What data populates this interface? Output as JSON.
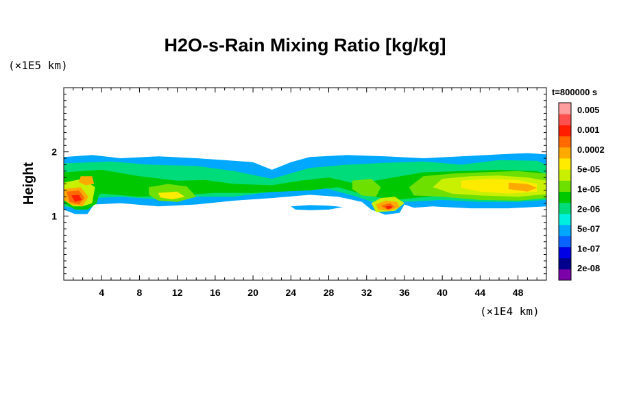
{
  "chart_data": {
    "type": "heatmap",
    "title": "H2O-s-Rain Mixing Ratio [kg/kg]",
    "ylabel": "Height",
    "xlabel": "",
    "x_scale_label": "(×1E4 km)",
    "y_scale_label": "(×1E5 km)",
    "time_label": "t=800000 s",
    "xlim": [
      0,
      51
    ],
    "ylim": [
      0,
      3
    ],
    "x_ticks": [
      4,
      8,
      12,
      16,
      20,
      24,
      28,
      32,
      36,
      40,
      44,
      48
    ],
    "y_ticks": [
      1,
      2
    ],
    "colorbar": {
      "labels": [
        "0.005",
        "0.001",
        "0.0002",
        "5e-05",
        "1e-05",
        "2e-06",
        "5e-07",
        "1e-07",
        "2e-08"
      ],
      "colors": [
        "#7a00a8",
        "#00008c",
        "#0000e6",
        "#0b63ff",
        "#00a8ff",
        "#00f0e0",
        "#00dc7a",
        "#00c800",
        "#6ee000",
        "#c8f000",
        "#ffeb00",
        "#ffaa00",
        "#ff6a00",
        "#ff1e00",
        "#ff5050",
        "#ff9e9e"
      ]
    },
    "regions": [
      {
        "level": 4,
        "points": [
          [
            0,
            1.92
          ],
          [
            3,
            1.95
          ],
          [
            6,
            1.9
          ],
          [
            10,
            1.93
          ],
          [
            14,
            1.9
          ],
          [
            17,
            1.87
          ],
          [
            20,
            1.84
          ],
          [
            22,
            1.72
          ],
          [
            24,
            1.84
          ],
          [
            26,
            1.92
          ],
          [
            30,
            1.95
          ],
          [
            34,
            1.93
          ],
          [
            38,
            1.9
          ],
          [
            42,
            1.93
          ],
          [
            46,
            1.96
          ],
          [
            49,
            1.98
          ],
          [
            51,
            1.96
          ],
          [
            51,
            1.15
          ],
          [
            47,
            1.12
          ],
          [
            43,
            1.12
          ],
          [
            39,
            1.15
          ],
          [
            37,
            1.13
          ],
          [
            36,
            1.18
          ],
          [
            35.5,
            1.05
          ],
          [
            34,
            1.02
          ],
          [
            32.5,
            1.1
          ],
          [
            31.5,
            1.22
          ],
          [
            29,
            1.3
          ],
          [
            26,
            1.33
          ],
          [
            22,
            1.28
          ],
          [
            18,
            1.24
          ],
          [
            14,
            1.18
          ],
          [
            10,
            1.15
          ],
          [
            6,
            1.2
          ],
          [
            3.2,
            1.18
          ],
          [
            2.5,
            1.03
          ],
          [
            1.2,
            1.03
          ],
          [
            0,
            1.1
          ]
        ]
      },
      {
        "level": 4,
        "points": [
          [
            24,
            1.15
          ],
          [
            26,
            1.17
          ],
          [
            28,
            1.16
          ],
          [
            29.5,
            1.14
          ],
          [
            28,
            1.1
          ],
          [
            26,
            1.09
          ],
          [
            24.5,
            1.1
          ]
        ]
      },
      {
        "level": 6,
        "points": [
          [
            0,
            1.82
          ],
          [
            5,
            1.85
          ],
          [
            9,
            1.8
          ],
          [
            14,
            1.78
          ],
          [
            18,
            1.7
          ],
          [
            22,
            1.58
          ],
          [
            26,
            1.75
          ],
          [
            30,
            1.8
          ],
          [
            34,
            1.83
          ],
          [
            38,
            1.85
          ],
          [
            42,
            1.8
          ],
          [
            46,
            1.87
          ],
          [
            50,
            1.86
          ],
          [
            51,
            1.8
          ],
          [
            51,
            1.25
          ],
          [
            48,
            1.22
          ],
          [
            44,
            1.22
          ],
          [
            40,
            1.25
          ],
          [
            36,
            1.22
          ],
          [
            33,
            1.2
          ],
          [
            31,
            1.3
          ],
          [
            28,
            1.42
          ],
          [
            25,
            1.45
          ],
          [
            22,
            1.38
          ],
          [
            18,
            1.3
          ],
          [
            14,
            1.3
          ],
          [
            10,
            1.26
          ],
          [
            6,
            1.3
          ],
          [
            3,
            1.28
          ],
          [
            2,
            1.12
          ],
          [
            0,
            1.15
          ]
        ]
      },
      {
        "level": 7,
        "points": [
          [
            0,
            1.68
          ],
          [
            4,
            1.72
          ],
          [
            8,
            1.62
          ],
          [
            12,
            1.55
          ],
          [
            15,
            1.56
          ],
          [
            18,
            1.5
          ],
          [
            22,
            1.48
          ],
          [
            25,
            1.55
          ],
          [
            28,
            1.6
          ],
          [
            31,
            1.5
          ],
          [
            34,
            1.58
          ],
          [
            38,
            1.68
          ],
          [
            42,
            1.7
          ],
          [
            46,
            1.72
          ],
          [
            50,
            1.7
          ],
          [
            51,
            1.65
          ],
          [
            51,
            1.3
          ],
          [
            48,
            1.28
          ],
          [
            44,
            1.28
          ],
          [
            40,
            1.32
          ],
          [
            37,
            1.28
          ],
          [
            35,
            1.25
          ],
          [
            32,
            1.32
          ],
          [
            29,
            1.45
          ],
          [
            26,
            1.4
          ],
          [
            23,
            1.38
          ],
          [
            20,
            1.36
          ],
          [
            16,
            1.36
          ],
          [
            12,
            1.32
          ],
          [
            8,
            1.3
          ],
          [
            4,
            1.35
          ],
          [
            2,
            1.2
          ],
          [
            0,
            1.2
          ]
        ]
      },
      {
        "level": 8,
        "points": [
          [
            38,
            1.62
          ],
          [
            41,
            1.66
          ],
          [
            44,
            1.68
          ],
          [
            48,
            1.7
          ],
          [
            51,
            1.66
          ],
          [
            51,
            1.28
          ],
          [
            48,
            1.24
          ],
          [
            44,
            1.25
          ],
          [
            40,
            1.3
          ],
          [
            37,
            1.32
          ],
          [
            36.5,
            1.45
          ]
        ]
      },
      {
        "level": 9,
        "points": [
          [
            40,
            1.58
          ],
          [
            43,
            1.62
          ],
          [
            46,
            1.63
          ],
          [
            49,
            1.6
          ],
          [
            51,
            1.55
          ],
          [
            51,
            1.34
          ],
          [
            48,
            1.3
          ],
          [
            44,
            1.32
          ],
          [
            41,
            1.35
          ],
          [
            39,
            1.45
          ]
        ]
      },
      {
        "level": 10,
        "points": [
          [
            42,
            1.55
          ],
          [
            45,
            1.58
          ],
          [
            48,
            1.56
          ],
          [
            50,
            1.5
          ],
          [
            50,
            1.38
          ],
          [
            47,
            1.35
          ],
          [
            44,
            1.38
          ],
          [
            42,
            1.44
          ]
        ]
      },
      {
        "level": 11,
        "points": [
          [
            47,
            1.52
          ],
          [
            49,
            1.5
          ],
          [
            50,
            1.44
          ],
          [
            49,
            1.38
          ],
          [
            47,
            1.42
          ]
        ]
      },
      {
        "level": 8,
        "points": [
          [
            9,
            1.45
          ],
          [
            11,
            1.5
          ],
          [
            13,
            1.46
          ],
          [
            14,
            1.3
          ],
          [
            12,
            1.22
          ],
          [
            10,
            1.24
          ],
          [
            9,
            1.33
          ]
        ]
      },
      {
        "level": 10,
        "points": [
          [
            10,
            1.36
          ],
          [
            12,
            1.38
          ],
          [
            12.8,
            1.3
          ],
          [
            11.5,
            1.26
          ],
          [
            10.2,
            1.29
          ]
        ]
      },
      {
        "level": 8,
        "points": [
          [
            30.5,
            1.55
          ],
          [
            32.5,
            1.58
          ],
          [
            33.5,
            1.45
          ],
          [
            33,
            1.3
          ],
          [
            31.5,
            1.32
          ],
          [
            30.5,
            1.42
          ]
        ]
      },
      {
        "level": 7,
        "points": [
          [
            0,
            1.6
          ],
          [
            2.5,
            1.65
          ],
          [
            4,
            1.5
          ],
          [
            3.5,
            1.2
          ],
          [
            2.5,
            1.1
          ],
          [
            1.2,
            1.1
          ],
          [
            0,
            1.2
          ]
        ]
      },
      {
        "level": 9,
        "points": [
          [
            0,
            1.52
          ],
          [
            2,
            1.58
          ],
          [
            3.3,
            1.45
          ],
          [
            3,
            1.2
          ],
          [
            2,
            1.15
          ],
          [
            1,
            1.15
          ],
          [
            0,
            1.25
          ]
        ]
      },
      {
        "level": 11,
        "points": [
          [
            1.8,
            1.62
          ],
          [
            3,
            1.62
          ],
          [
            3.2,
            1.5
          ],
          [
            2.3,
            1.48
          ],
          [
            1.6,
            1.53
          ]
        ]
      },
      {
        "level": 11,
        "points": [
          [
            0,
            1.42
          ],
          [
            1.8,
            1.45
          ],
          [
            2.6,
            1.3
          ],
          [
            2,
            1.15
          ],
          [
            0.8,
            1.18
          ],
          [
            0,
            1.25
          ]
        ]
      },
      {
        "level": 12,
        "points": [
          [
            0.3,
            1.38
          ],
          [
            1.6,
            1.4
          ],
          [
            2.2,
            1.28
          ],
          [
            1.6,
            1.18
          ],
          [
            0.6,
            1.22
          ]
        ]
      },
      {
        "level": 13,
        "points": [
          [
            0.8,
            1.32
          ],
          [
            1.6,
            1.33
          ],
          [
            1.9,
            1.25
          ],
          [
            1.2,
            1.22
          ]
        ]
      },
      {
        "level": 9,
        "points": [
          [
            32.5,
            1.2
          ],
          [
            33.5,
            1.28
          ],
          [
            35,
            1.3
          ],
          [
            36,
            1.2
          ],
          [
            35,
            1.08
          ],
          [
            33,
            1.06
          ]
        ]
      },
      {
        "level": 11,
        "points": [
          [
            33,
            1.18
          ],
          [
            34,
            1.24
          ],
          [
            35.2,
            1.22
          ],
          [
            35.5,
            1.14
          ],
          [
            34.5,
            1.08
          ],
          [
            33.2,
            1.1
          ]
        ]
      },
      {
        "level": 12,
        "points": [
          [
            33.5,
            1.16
          ],
          [
            34.5,
            1.2
          ],
          [
            35,
            1.14
          ],
          [
            34.2,
            1.1
          ]
        ]
      },
      {
        "level": 13,
        "points": [
          [
            34,
            1.15
          ],
          [
            34.6,
            1.16
          ],
          [
            34.7,
            1.12
          ],
          [
            34.2,
            1.11
          ]
        ]
      }
    ]
  }
}
